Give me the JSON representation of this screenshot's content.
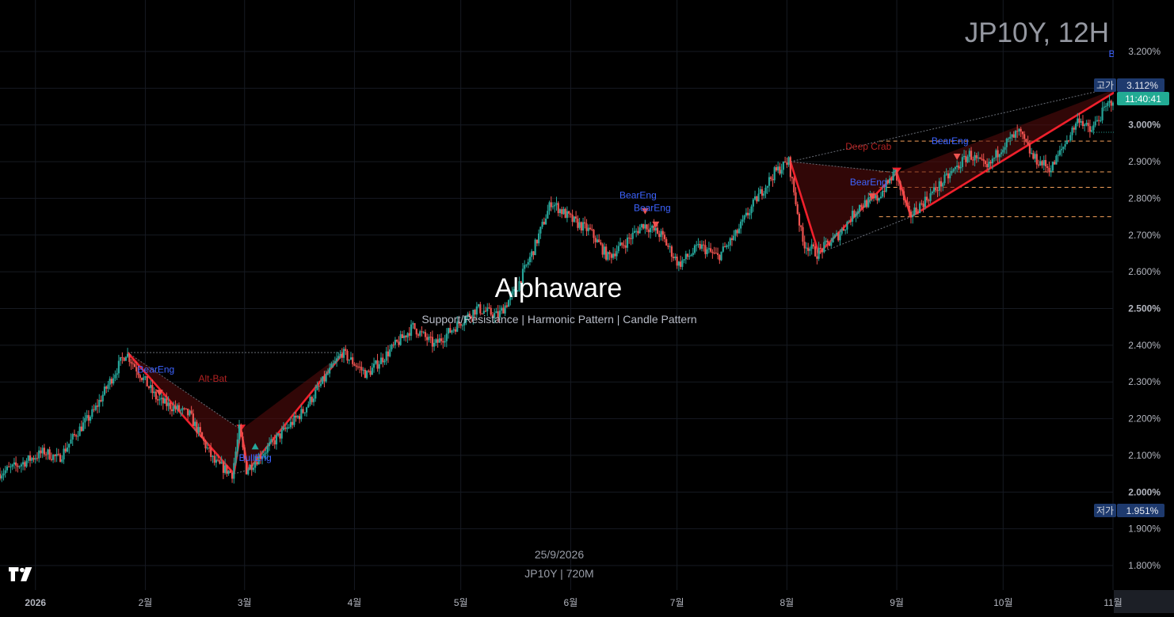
{
  "header": {
    "symbol_timeframe": "JP10Y, 12H"
  },
  "watermark": {
    "brand": "Alphaware",
    "tagline": "Support/Resistance  | Harmonic Pattern |  Candle Pattern",
    "date": "25/9/2026",
    "symbol_line": "JP10Y | 720M"
  },
  "price_scale": {
    "ticks": [
      "3.200%",
      "3.100%",
      "3.000%",
      "2.900%",
      "2.800%",
      "2.700%",
      "2.600%",
      "2.500%",
      "2.400%",
      "2.300%",
      "2.200%",
      "2.100%",
      "2.000%",
      "1.900%",
      "1.800%"
    ],
    "high_label": "고가",
    "high_value": "3.112%",
    "countdown": "11:40:41",
    "low_label": "저가",
    "low_value": "1.951%"
  },
  "time_scale": {
    "labels": [
      {
        "text": "2026",
        "date": "2026-01-01",
        "bold": true
      },
      {
        "text": "2월",
        "date": "2026-02-01"
      },
      {
        "text": "3월",
        "date": "2026-03-01"
      },
      {
        "text": "4월",
        "date": "2026-04-01"
      },
      {
        "text": "5월",
        "date": "2026-05-01"
      },
      {
        "text": "6월",
        "date": "2026-06-01"
      },
      {
        "text": "7월",
        "date": "2026-07-01"
      },
      {
        "text": "8월",
        "date": "2026-08-01"
      },
      {
        "text": "9월",
        "date": "2026-09-01"
      },
      {
        "text": "10월",
        "date": "2026-10-01"
      },
      {
        "text": "11월",
        "date": "2026-11-01"
      }
    ]
  },
  "colors": {
    "up": "#26a69a",
    "down": "#ef5350",
    "pattern_line": "#f0202c",
    "pattern_fill": "#5a0c0c",
    "level_line": "#f5a05a",
    "label_blue": "#3d63ff",
    "label_red": "#b22222",
    "high_badge": "#1e3a6e",
    "price_badge": "#22ab94"
  },
  "chart_data": {
    "type": "candlestick",
    "symbol": "JP10Y",
    "timeframe": "12H",
    "y_axis": {
      "min": 1.75,
      "max": 3.25,
      "unit": "%",
      "side": "right"
    },
    "x_axis": {
      "start": "2025-12-22",
      "end": "2026-11-01"
    },
    "price_path": [
      [
        "2025-12-22",
        2.05
      ],
      [
        "2025-12-27",
        2.07
      ],
      [
        "2026-01-04",
        2.11
      ],
      [
        "2026-01-08",
        2.09
      ],
      [
        "2026-01-13",
        2.16
      ],
      [
        "2026-01-18",
        2.22
      ],
      [
        "2026-01-23",
        2.31
      ],
      [
        "2026-01-27",
        2.38
      ],
      [
        "2026-02-05",
        2.25
      ],
      [
        "2026-02-14",
        2.21
      ],
      [
        "2026-02-21",
        2.08
      ],
      [
        "2026-02-26",
        2.05
      ],
      [
        "2026-02-28",
        2.17
      ],
      [
        "2026-03-02",
        2.06
      ],
      [
        "2026-03-09",
        2.13
      ],
      [
        "2026-03-18",
        2.22
      ],
      [
        "2026-03-29",
        2.38
      ],
      [
        "2026-04-05",
        2.32
      ],
      [
        "2026-04-12",
        2.39
      ],
      [
        "2026-04-18",
        2.45
      ],
      [
        "2026-04-24",
        2.4
      ],
      [
        "2026-05-01",
        2.46
      ],
      [
        "2026-05-06",
        2.5
      ],
      [
        "2026-05-12",
        2.48
      ],
      [
        "2026-05-17",
        2.55
      ],
      [
        "2026-05-22",
        2.66
      ],
      [
        "2026-05-27",
        2.79
      ],
      [
        "2026-06-02",
        2.74
      ],
      [
        "2026-06-07",
        2.71
      ],
      [
        "2026-06-12",
        2.64
      ],
      [
        "2026-06-17",
        2.68
      ],
      [
        "2026-06-22",
        2.73
      ],
      [
        "2026-06-27",
        2.7
      ],
      [
        "2026-07-02",
        2.62
      ],
      [
        "2026-07-08",
        2.67
      ],
      [
        "2026-07-13",
        2.64
      ],
      [
        "2026-07-18",
        2.7
      ],
      [
        "2026-07-24",
        2.8
      ],
      [
        "2026-07-29",
        2.87
      ],
      [
        "2026-08-02",
        2.9
      ],
      [
        "2026-08-06",
        2.68
      ],
      [
        "2026-08-10",
        2.65
      ],
      [
        "2026-08-16",
        2.7
      ],
      [
        "2026-08-22",
        2.78
      ],
      [
        "2026-08-27",
        2.8
      ],
      [
        "2026-09-01",
        2.87
      ],
      [
        "2026-09-05",
        2.75
      ],
      [
        "2026-09-10",
        2.8
      ],
      [
        "2026-09-16",
        2.86
      ],
      [
        "2026-09-22",
        2.92
      ],
      [
        "2026-09-27",
        2.88
      ],
      [
        "2026-10-01",
        2.94
      ],
      [
        "2026-10-06",
        2.98
      ],
      [
        "2026-10-10",
        2.91
      ],
      [
        "2026-10-15",
        2.88
      ],
      [
        "2026-10-19",
        2.95
      ],
      [
        "2026-10-23",
        3.02
      ],
      [
        "2026-10-26",
        2.98
      ],
      [
        "2026-10-30",
        3.04
      ],
      [
        "2026-11-03",
        3.09
      ],
      [
        "2026-11-05",
        3.11
      ]
    ],
    "session_high": 3.112,
    "session_low": 1.951,
    "harmonic_patterns": [
      {
        "name": "Alt-Bat",
        "points": [
          [
            "2026-01-27",
            2.38
          ],
          [
            "2026-02-26",
            2.05
          ],
          [
            "2026-02-28",
            2.17
          ],
          [
            "2026-03-02",
            2.06
          ],
          [
            "2026-03-29",
            2.38
          ]
        ],
        "completion": [
          "2026-02-28",
          2.175
        ]
      },
      {
        "name": "Deep Crab",
        "points": [
          [
            "2026-08-02",
            2.9
          ],
          [
            "2026-08-10",
            2.65
          ],
          [
            "2026-09-01",
            2.87
          ],
          [
            "2026-09-05",
            2.75
          ],
          [
            "2026-11-05",
            3.11
          ]
        ],
        "completion": [
          "2026-09-01",
          2.875
        ],
        "levels": [
          {
            "value": 2.956,
            "from": "2026-08-27",
            "to": "2026-11-10"
          },
          {
            "value": 2.872,
            "from": "2026-08-27",
            "to": "2026-11-10"
          },
          {
            "value": 2.83,
            "from": "2026-08-27",
            "to": "2026-11-10"
          },
          {
            "value": 2.75,
            "from": "2026-08-27",
            "to": "2026-11-10"
          }
        ]
      }
    ],
    "candle_patterns": [
      {
        "name": "BearEng",
        "type": "bearish",
        "at": [
          "2026-02-05",
          2.27
        ],
        "label_pos": [
          "2026-02-04",
          2.325
        ]
      },
      {
        "name": "BullEng",
        "type": "bullish",
        "at": [
          "2026-03-04",
          2.125
        ],
        "label_pos": [
          "2026-03-04",
          2.085
        ]
      },
      {
        "name": "BearEng",
        "type": "bearish",
        "at": [
          "2026-06-22",
          2.765
        ],
        "label_pos": [
          "2026-06-20",
          2.8
        ]
      },
      {
        "name": "BearEng",
        "type": "bearish",
        "at": [
          "2026-06-25",
          2.728
        ],
        "label_pos": [
          "2026-06-24",
          2.765
        ]
      },
      {
        "name": "BearEng",
        "type": "bearish",
        "at": [
          "2026-08-25",
          2.805
        ],
        "label_pos": [
          "2026-08-24",
          2.835
        ]
      },
      {
        "name": "BearEng",
        "type": "bearish",
        "at": [
          "2026-09-18",
          2.913
        ],
        "label_pos": [
          "2026-09-16",
          2.948
        ]
      },
      {
        "name": "BearEng",
        "type": "bearish",
        "at": [
          "2026-11-05",
          3.153
        ],
        "label_pos": [
          "2026-11-05",
          3.185
        ]
      }
    ]
  }
}
